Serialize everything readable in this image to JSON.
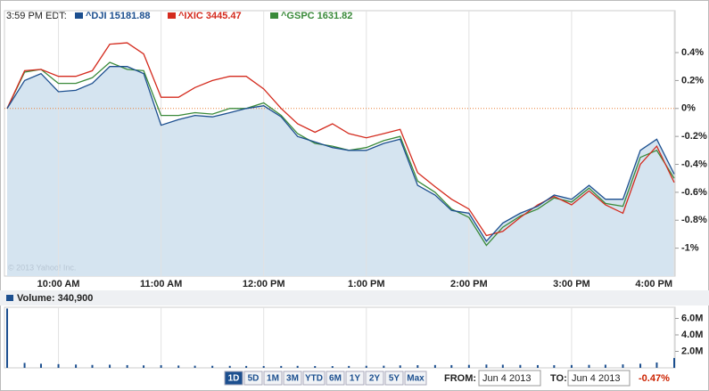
{
  "header": {
    "time": "3:59 PM EDT:"
  },
  "chart_data": [
    {
      "type": "line",
      "x_unit": "hour",
      "x": [
        9.5,
        9.67,
        9.83,
        10,
        10.17,
        10.33,
        10.5,
        10.67,
        10.83,
        11,
        11.17,
        11.33,
        11.5,
        11.67,
        11.83,
        12,
        12.17,
        12.33,
        12.5,
        12.67,
        12.83,
        13,
        13.17,
        13.33,
        13.5,
        13.67,
        13.83,
        14,
        14.17,
        14.33,
        14.5,
        14.67,
        14.83,
        15,
        15.17,
        15.33,
        15.5,
        15.67,
        15.83,
        16
      ],
      "xlim": [
        9.5,
        16
      ],
      "xticks": [
        {
          "value": 10,
          "label": "10:00 AM"
        },
        {
          "value": 11,
          "label": "11:00 AM"
        },
        {
          "value": 12,
          "label": "12:00 PM"
        },
        {
          "value": 13,
          "label": "1:00 PM"
        },
        {
          "value": 14,
          "label": "2:00 PM"
        },
        {
          "value": 15,
          "label": "3:00 PM"
        },
        {
          "value": 16,
          "label": "4:00 PM"
        }
      ],
      "ylim": [
        -1.2,
        0.7
      ],
      "yticks": [
        {
          "value": 0.4,
          "label": "0.4%"
        },
        {
          "value": 0.2,
          "label": "0.2%"
        },
        {
          "value": 0,
          "label": "0%"
        },
        {
          "value": -0.2,
          "label": "-0.2%"
        },
        {
          "value": -0.4,
          "label": "-0.4%"
        },
        {
          "value": -0.6,
          "label": "-0.6%"
        },
        {
          "value": -0.8,
          "label": "-0.8%"
        },
        {
          "value": -1,
          "label": "-1%"
        }
      ],
      "grid": true,
      "watermark": "© 2013 Yahoo! Inc.",
      "series": [
        {
          "name": "^DJI 15181.88",
          "color": "#1c4f8f",
          "fill": "#d5e4f0",
          "values": [
            0,
            0.2,
            0.25,
            0.12,
            0.13,
            0.18,
            0.3,
            0.3,
            0.25,
            -0.12,
            -0.08,
            -0.05,
            -0.06,
            -0.03,
            0,
            0.02,
            -0.06,
            -0.2,
            -0.24,
            -0.28,
            -0.3,
            -0.3,
            -0.25,
            -0.22,
            -0.55,
            -0.62,
            -0.73,
            -0.75,
            -0.95,
            -0.82,
            -0.75,
            -0.7,
            -0.62,
            -0.65,
            -0.55,
            -0.65,
            -0.65,
            -0.3,
            -0.22,
            -0.47
          ]
        },
        {
          "name": "^IXIC 3445.47",
          "color": "#d42b1e",
          "values": [
            0,
            0.27,
            0.28,
            0.23,
            0.23,
            0.27,
            0.46,
            0.47,
            0.39,
            0.08,
            0.08,
            0.15,
            0.2,
            0.23,
            0.23,
            0.14,
            0,
            -0.11,
            -0.17,
            -0.11,
            -0.18,
            -0.21,
            -0.18,
            -0.15,
            -0.46,
            -0.56,
            -0.65,
            -0.72,
            -0.91,
            -0.88,
            -0.78,
            -0.69,
            -0.63,
            -0.69,
            -0.59,
            -0.69,
            -0.75,
            -0.4,
            -0.27,
            -0.53
          ]
        },
        {
          "name": "^GSPC 1631.82",
          "color": "#3a8a3a",
          "values": [
            0,
            0.26,
            0.28,
            0.18,
            0.18,
            0.22,
            0.33,
            0.28,
            0.27,
            -0.05,
            -0.05,
            -0.03,
            -0.04,
            0,
            0,
            0.04,
            -0.05,
            -0.18,
            -0.25,
            -0.27,
            -0.3,
            -0.28,
            -0.23,
            -0.2,
            -0.52,
            -0.6,
            -0.72,
            -0.78,
            -0.98,
            -0.85,
            -0.77,
            -0.72,
            -0.64,
            -0.67,
            -0.57,
            -0.68,
            -0.7,
            -0.35,
            -0.3,
            -0.5
          ]
        }
      ]
    },
    {
      "type": "bar",
      "label": "Volume: 340,900",
      "color": "#1c4f8f",
      "x": [
        9.5,
        9.67,
        9.83,
        10,
        10.17,
        10.33,
        10.5,
        10.67,
        10.83,
        11,
        11.17,
        11.33,
        11.5,
        11.67,
        11.83,
        12,
        12.17,
        12.33,
        12.5,
        12.67,
        12.83,
        13,
        13.17,
        13.33,
        13.5,
        13.67,
        13.83,
        14,
        14.17,
        14.33,
        14.5,
        14.67,
        14.83,
        15,
        15.17,
        15.33,
        15.5,
        15.67,
        15.83,
        16
      ],
      "values": [
        7200000,
        600000,
        500000,
        450000,
        400000,
        350000,
        380000,
        330000,
        300000,
        320000,
        280000,
        260000,
        250000,
        240000,
        230000,
        220000,
        230000,
        240000,
        220000,
        210000,
        230000,
        250000,
        260000,
        300000,
        320000,
        340000,
        330000,
        360000,
        400000,
        380000,
        350000,
        330000,
        320000,
        340000,
        360000,
        380000,
        420000,
        500000,
        650000,
        1200000
      ],
      "xlim": [
        9.5,
        16
      ],
      "ylim": [
        0,
        7350000
      ],
      "yticks": [
        {
          "value": 2000000,
          "label": "2.0M"
        },
        {
          "value": 4000000,
          "label": "4.0M"
        },
        {
          "value": 6000000,
          "label": "6.0M"
        }
      ]
    }
  ],
  "controls": {
    "ranges": [
      "1D",
      "5D",
      "1M",
      "3M",
      "YTD",
      "6M",
      "1Y",
      "2Y",
      "5Y",
      "Max"
    ],
    "active": "1D",
    "from_label": "FROM:",
    "from": "Jun 4 2013",
    "to_label": "TO:",
    "to": "Jun 4 2013",
    "change": "-0.47%"
  }
}
